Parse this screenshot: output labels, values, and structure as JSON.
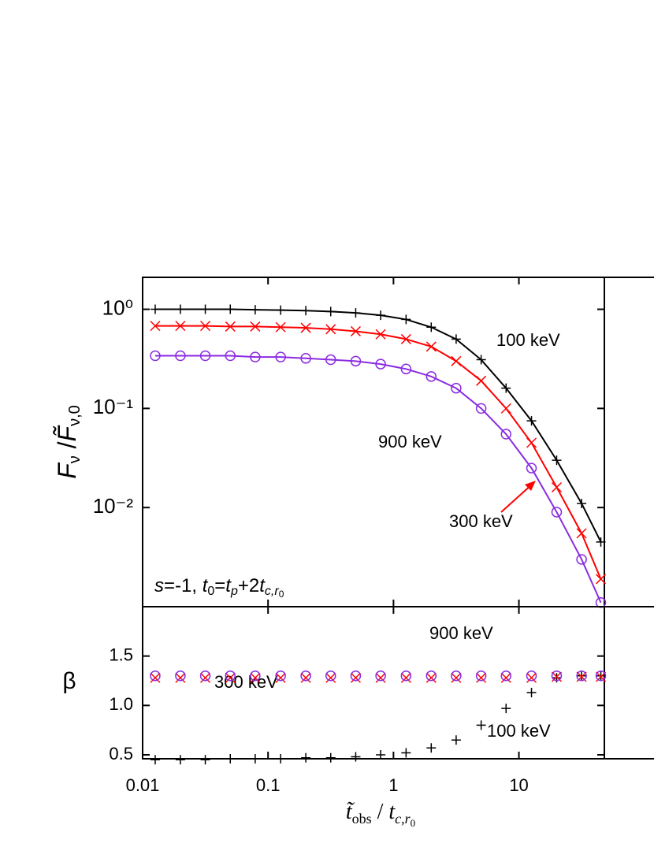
{
  "chart_data": [
    {
      "type": "line",
      "ylog": true,
      "xlog": true,
      "x": [
        0.0126,
        0.02,
        0.0316,
        0.05,
        0.079,
        0.126,
        0.2,
        0.316,
        0.5,
        0.79,
        1.26,
        2,
        3.16,
        5,
        7.9,
        12.6,
        20,
        31.6,
        45
      ],
      "xlim": [
        0.01,
        48
      ],
      "xticks": [
        0.01,
        0.1,
        1,
        10
      ],
      "ylim": [
        0.001,
        2.1
      ],
      "yticks": [
        {
          "value": 1,
          "label": "10⁰"
        },
        {
          "value": 0.1,
          "label": "10⁻¹"
        },
        {
          "value": 0.01,
          "label": "10⁻²"
        }
      ],
      "ylabel_parts": [
        "F",
        "ν",
        " /",
        "F̃",
        "ν,0"
      ],
      "panel_label_parts": [
        "s",
        "=-1, ",
        "t",
        "0",
        "=",
        "t",
        "p",
        "+2",
        "t",
        "c,r",
        "0"
      ],
      "series": [
        {
          "name": "100 keV",
          "color": "#000000",
          "marker": "plus",
          "values": [
            1.0,
            1.0,
            1.0,
            1.0,
            0.99,
            0.98,
            0.97,
            0.95,
            0.92,
            0.87,
            0.79,
            0.66,
            0.5,
            0.31,
            0.16,
            0.075,
            0.03,
            0.011,
            0.0045
          ]
        },
        {
          "name": "300 keV",
          "color": "#ff0000",
          "marker": "x",
          "values": [
            0.68,
            0.68,
            0.68,
            0.67,
            0.67,
            0.66,
            0.65,
            0.63,
            0.6,
            0.56,
            0.5,
            0.42,
            0.3,
            0.19,
            0.1,
            0.045,
            0.016,
            0.0055,
            0.0019
          ]
        },
        {
          "name": "900 keV",
          "color": "#8a2be2",
          "marker": "circle",
          "values": [
            0.34,
            0.34,
            0.34,
            0.34,
            0.33,
            0.33,
            0.32,
            0.31,
            0.3,
            0.28,
            0.25,
            0.21,
            0.16,
            0.1,
            0.055,
            0.025,
            0.009,
            0.003,
            0.0011
          ]
        }
      ]
    },
    {
      "type": "scatter",
      "ylog": false,
      "xlog": true,
      "x": [
        0.0126,
        0.02,
        0.0316,
        0.05,
        0.079,
        0.126,
        0.2,
        0.316,
        0.5,
        0.79,
        1.26,
        2,
        3.16,
        5,
        7.9,
        12.6,
        20,
        31.6,
        45
      ],
      "xlim": [
        0.01,
        48
      ],
      "xticks": [
        0.01,
        0.1,
        1,
        10
      ],
      "ylim": [
        0.46,
        2.0
      ],
      "yticks": [
        0.5,
        {
          "value": 1.0,
          "label": "1.0"
        },
        1.5
      ],
      "ylabel": "β",
      "xlabel_parts": [
        "t̃",
        "obs",
        " / ",
        "t",
        "c,r",
        "0"
      ],
      "series": [
        {
          "name": "100 keV",
          "color": "#000000",
          "marker": "plus",
          "values": [
            0.45,
            0.45,
            0.45,
            0.46,
            0.46,
            0.46,
            0.47,
            0.47,
            0.48,
            0.5,
            0.52,
            0.57,
            0.65,
            0.8,
            0.97,
            1.13,
            1.28,
            1.3,
            1.3
          ]
        },
        {
          "name": "300 keV",
          "color": "#ff0000",
          "marker": "x",
          "values": [
            1.28,
            1.28,
            1.28,
            1.28,
            1.28,
            1.28,
            1.28,
            1.28,
            1.28,
            1.28,
            1.28,
            1.28,
            1.28,
            1.28,
            1.28,
            1.28,
            1.29,
            1.29,
            1.29
          ]
        },
        {
          "name": "900 keV",
          "color": "#8a2be2",
          "marker": "circle",
          "values": [
            1.3,
            1.3,
            1.3,
            1.3,
            1.3,
            1.3,
            1.3,
            1.3,
            1.3,
            1.3,
            1.3,
            1.3,
            1.3,
            1.3,
            1.3,
            1.3,
            1.3,
            1.3,
            1.3
          ]
        }
      ]
    }
  ]
}
